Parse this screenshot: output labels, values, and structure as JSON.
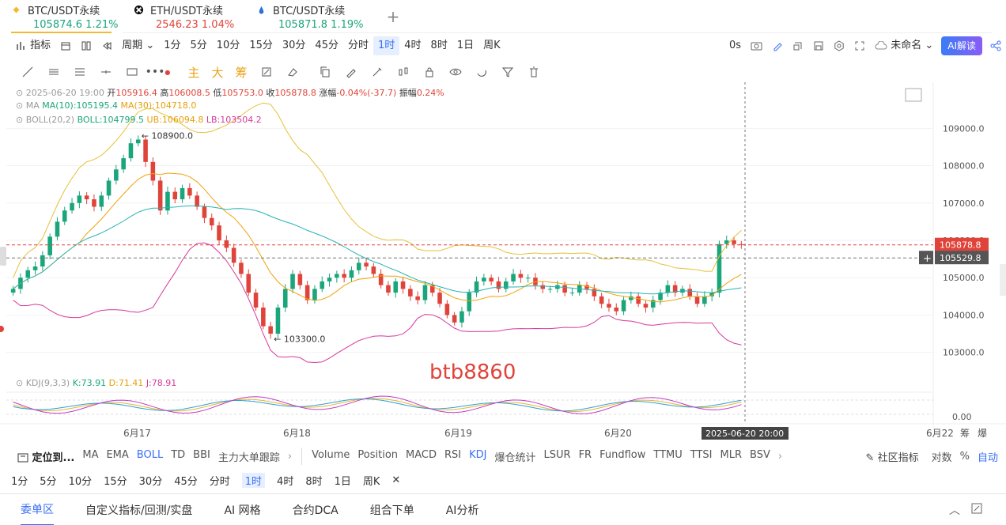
{
  "tabs": [
    {
      "name": "BTC/USDT永续",
      "price": "105874.6",
      "change": "1.21%",
      "color": "#1aa57a",
      "icon": "binance-icon"
    },
    {
      "name": "ETH/USDT永续",
      "price": "2546.23",
      "change": "1.04%",
      "color": "#e0433a",
      "icon": "okx-icon"
    },
    {
      "name": "BTC/USDT永续",
      "price": "105871.8",
      "change": "1.19%",
      "color": "#1aa57a",
      "icon": "drop-icon"
    }
  ],
  "toolbar": {
    "indicator": "指标",
    "period": "周期",
    "intervals": [
      "1分",
      "5分",
      "10分",
      "15分",
      "30分",
      "45分",
      "分时",
      "1时",
      "4时",
      "8时",
      "1日",
      "周K"
    ],
    "selected_interval": "1时",
    "countdown": "0s",
    "template": "未命名",
    "ai_button": "AI解读"
  },
  "drawtools": {
    "chars": [
      "主",
      "大",
      "筹"
    ]
  },
  "legend": {
    "candle_info": {
      "date": "2025-06-20 19:00",
      "open_label": "开",
      "open": "105916.4",
      "high_label": "高",
      "high": "106008.5",
      "low_label": "低",
      "low": "105753.0",
      "close_label": "收",
      "close": "105878.8",
      "chg_label": "涨幅",
      "chg": "-0.04%(-37.7)",
      "amp_label": "振幅",
      "amp": "0.24%"
    },
    "ma": {
      "name": "MA",
      "ma10": "MA(10):105195.4",
      "ma30": "MA(30):104718.0"
    },
    "boll": {
      "name": "BOLL(20,2)",
      "boll": "BOLL:104799.5",
      "ub": "UB:106094.8",
      "lb": "LB:103504.2"
    },
    "kdj": {
      "name": "KDJ(9,3,3)",
      "k": "K:73.91",
      "d": "D:71.41",
      "j": "J:78.91"
    }
  },
  "colors": {
    "up": "#1aa57a",
    "down": "#e0433a",
    "ma10": "#f0a30a",
    "boll_mid": "#e5c13a",
    "boll_lb": "#d6399c",
    "boll_ub": "#e5c13a",
    "ma30": "#27b3b3",
    "k": "#e5b82c",
    "d": "#2f9fd8",
    "j": "#c33cc3"
  },
  "chart_data": {
    "type": "candlestick",
    "y_ticks": [
      "109000.0",
      "108000.0",
      "107000.0",
      "106000.0",
      "105000.0",
      "104000.0",
      "103000.0"
    ],
    "ylim": [
      102400,
      109600
    ],
    "x_ticks": [
      "6月17",
      "6月18",
      "6月19",
      "6月20",
      "6月22"
    ],
    "crosshair_time": "2025-06-20 20:00",
    "last_price_label": "105878.8",
    "crosshair_price_label": "105529.8",
    "high_annotation": "108900.0",
    "low_annotation": "103300.0",
    "kdj_tick": "0.00",
    "watermark": "btb8860",
    "closes": [
      104700,
      105000,
      105200,
      105300,
      105600,
      106100,
      106500,
      106800,
      107000,
      107200,
      107100,
      106900,
      107200,
      107600,
      107900,
      108200,
      108600,
      108700,
      108100,
      107600,
      106800,
      107300,
      107100,
      107400,
      107200,
      106900,
      106600,
      106400,
      106000,
      105800,
      105400,
      105100,
      104600,
      104200,
      103700,
      103500,
      104200,
      104700,
      105100,
      104800,
      104400,
      104700,
      104900,
      105000,
      105100,
      105000,
      105200,
      105400,
      105300,
      105100,
      104800,
      104600,
      104900,
      104700,
      104500,
      104400,
      104800,
      104600,
      104300,
      104000,
      103800,
      104100,
      104600,
      104900,
      105000,
      104900,
      104700,
      104900,
      105100,
      105000,
      105000,
      104800,
      104700,
      104700,
      104800,
      104600,
      104600,
      104800,
      104700,
      104500,
      104300,
      104200,
      104100,
      104400,
      104500,
      104300,
      104200,
      104400,
      104600,
      104800,
      104600,
      104700,
      104500,
      104300,
      104500,
      104600,
      105900,
      106000,
      105900,
      105879
    ]
  },
  "bottom_indicators": {
    "locate": "定位到...",
    "main": [
      "MA",
      "EMA",
      "BOLL",
      "TD",
      "BBI",
      "主力大单跟踪"
    ],
    "sub": [
      "Volume",
      "Position",
      "MACD",
      "RSI",
      "KDJ",
      "爆仓统计",
      "LSUR",
      "FR",
      "Fundflow",
      "TTMU",
      "TTSI",
      "MLR",
      "BSV"
    ],
    "community": "社区指标",
    "log": "对数",
    "pct": "%",
    "auto": "自动",
    "active_main": "BOLL",
    "active_sub": "KDJ"
  },
  "bottom_intervals": [
    "1分",
    "5分",
    "10分",
    "15分",
    "30分",
    "45分",
    "分时",
    "1时",
    "4时",
    "8时",
    "1日",
    "周K"
  ],
  "bottom_tabs": [
    "委单区",
    "自定义指标/回测/实盘",
    "AI 网格",
    "合约DCA",
    "组合下单",
    "AI分析"
  ],
  "bottom_right_labels": [
    "筹",
    "爆"
  ]
}
